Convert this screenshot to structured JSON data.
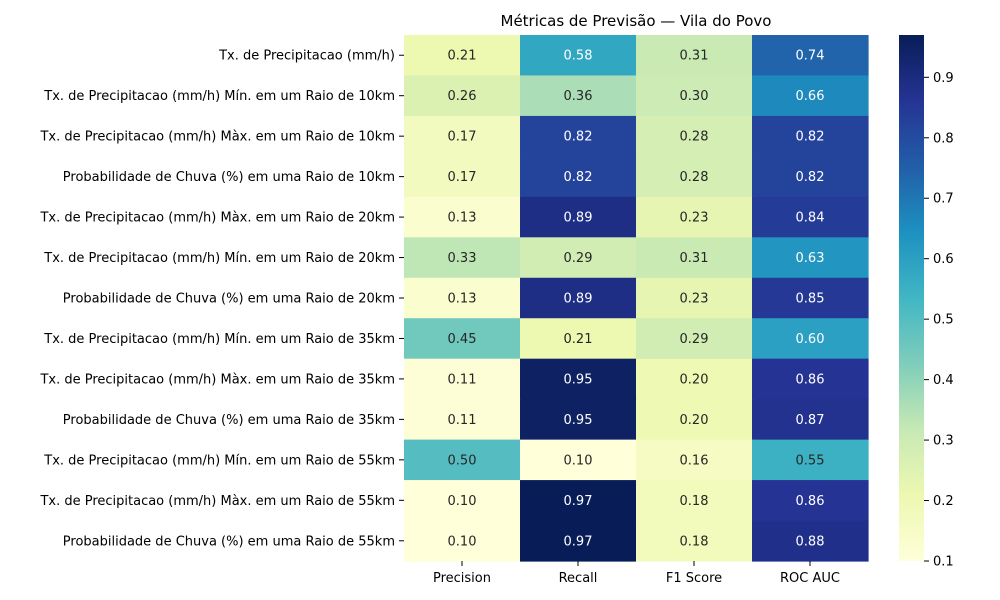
{
  "chart_data": {
    "type": "heatmap",
    "title": "Métricas de Previsão — Vila do Povo",
    "xlabel": "",
    "ylabel": "",
    "columns": [
      "Precision",
      "Recall",
      "F1 Score",
      "ROC AUC"
    ],
    "rows": [
      "Tx. de Precipitacao (mm/h)",
      "Tx. de Precipitacao (mm/h) Mín. em um Raio de 10km",
      "Tx. de Precipitacao (mm/h) Màx. em um Raio de 10km",
      "Probabilidade de Chuva (%) em uma Raio de 10km",
      "Tx. de Precipitacao (mm/h) Màx. em um Raio de 20km",
      "Tx. de Precipitacao (mm/h) Mín. em um Raio de 20km",
      "Probabilidade de Chuva (%) em uma Raio de 20km",
      "Tx. de Precipitacao (mm/h) Mín. em um Raio de 35km",
      "Tx. de Precipitacao (mm/h) Màx. em um Raio de 35km",
      "Probabilidade de Chuva (%) em uma Raio de 35km",
      "Tx. de Precipitacao (mm/h) Mín. em um Raio de 55km",
      "Tx. de Precipitacao (mm/h) Màx. em um Raio de 55km",
      "Probabilidade de Chuva (%) em uma Raio de 55km"
    ],
    "values": [
      [
        0.21,
        0.58,
        0.31,
        0.74
      ],
      [
        0.26,
        0.36,
        0.3,
        0.66
      ],
      [
        0.17,
        0.82,
        0.28,
        0.82
      ],
      [
        0.17,
        0.82,
        0.28,
        0.82
      ],
      [
        0.13,
        0.89,
        0.23,
        0.84
      ],
      [
        0.33,
        0.29,
        0.31,
        0.63
      ],
      [
        0.13,
        0.89,
        0.23,
        0.85
      ],
      [
        0.45,
        0.21,
        0.29,
        0.6
      ],
      [
        0.11,
        0.95,
        0.2,
        0.86
      ],
      [
        0.11,
        0.95,
        0.2,
        0.87
      ],
      [
        0.5,
        0.1,
        0.16,
        0.55
      ],
      [
        0.1,
        0.97,
        0.18,
        0.86
      ],
      [
        0.1,
        0.97,
        0.18,
        0.88
      ]
    ],
    "colormap": "YlGnBu",
    "colorbar": {
      "min": 0.1,
      "max": 0.97,
      "ticks": [
        0.1,
        0.2,
        0.3,
        0.4,
        0.5,
        0.6,
        0.7,
        0.8,
        0.9
      ]
    },
    "annotation_text_colors": {
      "light": "#262626",
      "dark": "#ffffff"
    },
    "legend": "colorbar right",
    "grid": false
  }
}
